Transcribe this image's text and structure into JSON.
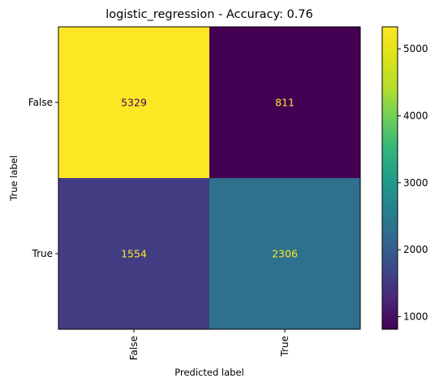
{
  "chart_data": {
    "type": "heatmap",
    "title": "logistic_regression - Accuracy: 0.76",
    "xlabel": "Predicted label",
    "ylabel": "True label",
    "x_categories": [
      "False",
      "True"
    ],
    "y_categories": [
      "False",
      "True"
    ],
    "matrix": [
      [
        5329,
        811
      ],
      [
        1554,
        2306
      ]
    ],
    "cell_text_colors": [
      [
        "#440154",
        "#fde725"
      ],
      [
        "#fde725",
        "#fde725"
      ]
    ],
    "colormap": "viridis",
    "colorbar": {
      "vmin": 811,
      "vmax": 5329,
      "ticks": [
        1000,
        2000,
        3000,
        4000,
        5000
      ]
    },
    "grid": false
  }
}
